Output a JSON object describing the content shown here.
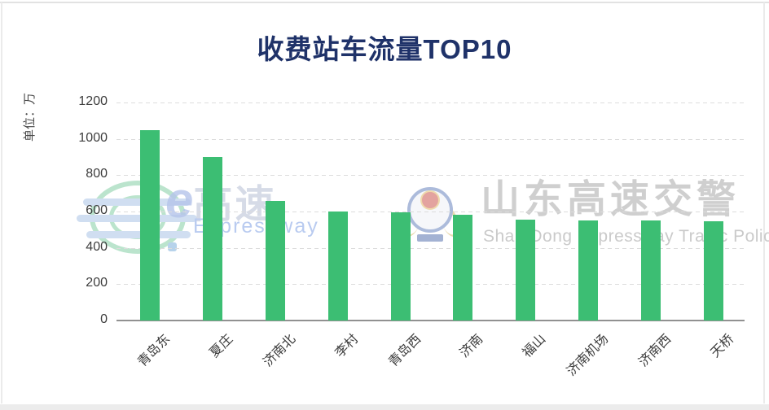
{
  "chart_data": {
    "type": "bar",
    "title": "收费站车流量TOP10",
    "unit_label": "单位：万",
    "categories": [
      "青岛东",
      "夏庄",
      "济南北",
      "李村",
      "青岛西",
      "济南",
      "福山",
      "济南机场",
      "济南西",
      "天桥"
    ],
    "values": [
      1050,
      900,
      660,
      600,
      595,
      580,
      555,
      552,
      550,
      548
    ],
    "xlabel": "",
    "ylabel": "单位：万",
    "ylim": [
      0,
      1200
    ],
    "y_ticks": [
      0,
      200,
      400,
      600,
      800,
      1000,
      1200
    ],
    "grid": "horizontal-dashed",
    "legend": "none",
    "x_label_rotation": -45,
    "bar_color": "#3cbe73",
    "title_color": "#1f3269"
  },
  "watermarks": {
    "left": {
      "logo": "e-expressway-logo",
      "text_e": "e",
      "text_cn": "高速",
      "text_en": "Expressway"
    },
    "right": {
      "logo": "shandong-expressway-traffic-police-badge",
      "text_cn": "山东高速交警",
      "text_en": "Shan Dong Expressway Traffic Police"
    }
  }
}
